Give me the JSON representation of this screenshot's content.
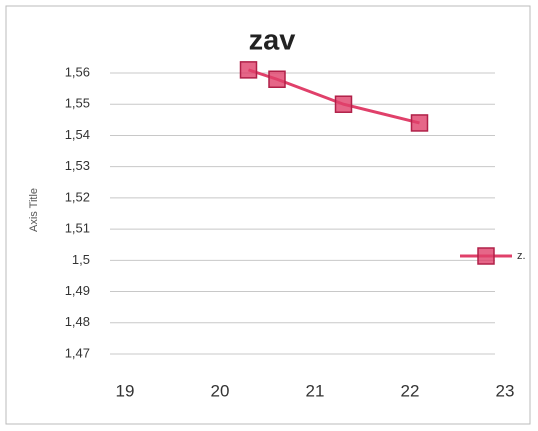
{
  "chart_data": {
    "type": "line",
    "title": "zav",
    "y_label": "Axis Title",
    "series": [
      {
        "name": "z.",
        "color": "#e0406a",
        "x": [
          20.3,
          20.6,
          21.3,
          22.1
        ],
        "values": [
          1.561,
          1.558,
          1.55,
          1.544
        ]
      }
    ],
    "xlim": [
      19,
      23
    ],
    "xticks": [
      19,
      20,
      21,
      22,
      23
    ],
    "ylim": [
      1.47,
      1.56
    ],
    "yticks": [
      {
        "value": 1.56,
        "label": "1,56"
      },
      {
        "value": 1.55,
        "label": "1,55"
      },
      {
        "value": 1.54,
        "label": "1,54"
      },
      {
        "value": 1.53,
        "label": "1,53"
      },
      {
        "value": 1.52,
        "label": "1,52"
      },
      {
        "value": 1.51,
        "label": "1,51"
      },
      {
        "value": 1.5,
        "label": "1,5"
      },
      {
        "value": 1.49,
        "label": "1,49"
      },
      {
        "value": 1.48,
        "label": "1,48"
      },
      {
        "value": 1.47,
        "label": "1,47"
      }
    ],
    "grid": true,
    "legend": "right"
  }
}
